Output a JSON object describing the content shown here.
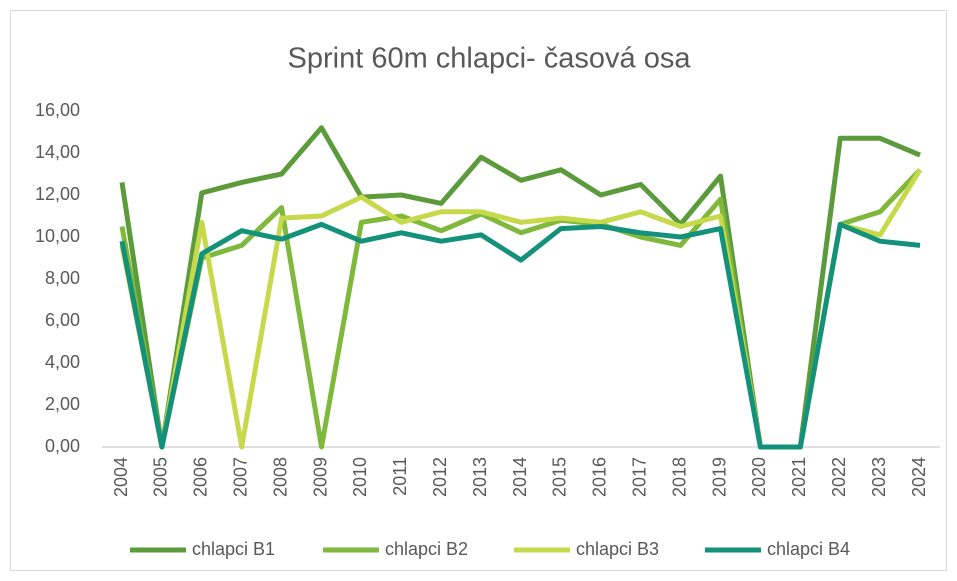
{
  "chart_data": {
    "type": "line",
    "title": "Sprint 60m chlapci- časová osa",
    "categories": [
      "2004",
      "2005",
      "2006",
      "2007",
      "2008",
      "2009",
      "2010",
      "2011",
      "2012",
      "2013",
      "2014",
      "2015",
      "2016",
      "2017",
      "2018",
      "2019",
      "2020",
      "2021",
      "2022",
      "2023",
      "2024"
    ],
    "series": [
      {
        "name": "chlapci B1",
        "color": "#5b9b3b",
        "values": [
          12.6,
          0,
          12.1,
          12.6,
          13.0,
          15.2,
          11.9,
          12.0,
          11.6,
          13.8,
          12.7,
          13.2,
          12.0,
          12.5,
          10.6,
          12.9,
          0,
          0,
          14.7,
          14.7,
          13.9
        ]
      },
      {
        "name": "chlapci B2",
        "color": "#7fb83a",
        "values": [
          10.5,
          0,
          9.0,
          9.6,
          11.4,
          0,
          10.7,
          11.0,
          10.3,
          11.1,
          10.2,
          10.8,
          10.6,
          10.0,
          9.6,
          11.8,
          0,
          0,
          10.6,
          11.2,
          13.2
        ]
      },
      {
        "name": "chlapci B3",
        "color": "#c6d94a",
        "values": [
          9.6,
          0,
          10.7,
          0,
          10.9,
          11.0,
          11.9,
          10.7,
          11.2,
          11.2,
          10.7,
          10.9,
          10.7,
          11.2,
          10.5,
          11.0,
          0,
          0,
          10.6,
          10.1,
          13.2
        ]
      },
      {
        "name": "chlapci B4",
        "color": "#14917a",
        "values": [
          9.8,
          0,
          9.2,
          10.3,
          9.9,
          10.6,
          9.8,
          10.2,
          9.8,
          10.1,
          8.9,
          10.4,
          10.5,
          10.2,
          10.0,
          10.4,
          0,
          0,
          10.6,
          9.8,
          9.6
        ]
      }
    ],
    "ylim": [
      0,
      16
    ],
    "yticks": [
      {
        "value": 0,
        "label": "0,00"
      },
      {
        "value": 2,
        "label": "2,00"
      },
      {
        "value": 4,
        "label": "4,00"
      },
      {
        "value": 6,
        "label": "6,00"
      },
      {
        "value": 8,
        "label": "8,00"
      },
      {
        "value": 10,
        "label": "10,00"
      },
      {
        "value": 12,
        "label": "12,00"
      },
      {
        "value": 14,
        "label": "14,00"
      },
      {
        "value": 16,
        "label": "16,00"
      }
    ],
    "grid": false,
    "legend": "bottom"
  }
}
